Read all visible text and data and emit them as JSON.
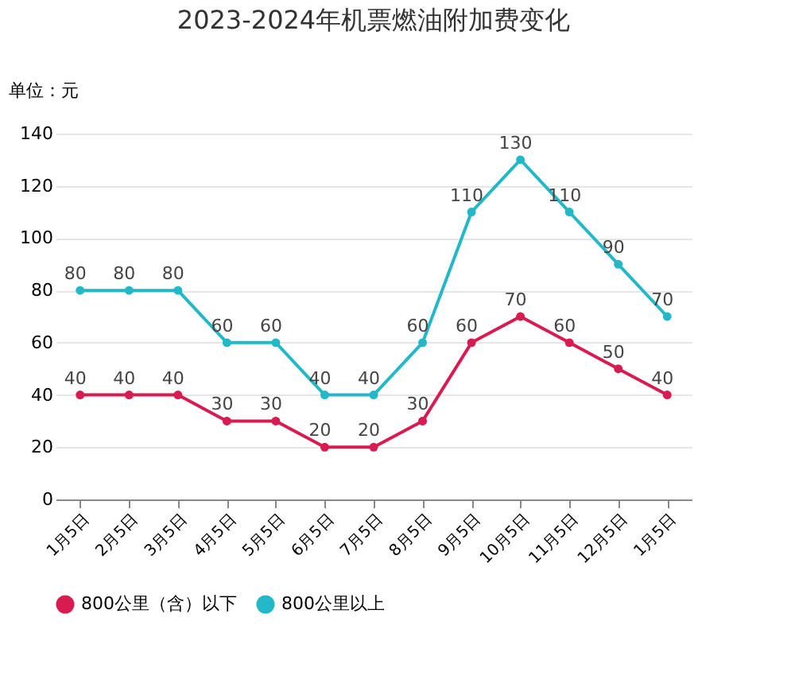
{
  "chart_data": {
    "type": "line",
    "title": "2023-2024年机票燃油附加费变化",
    "ylabel": "单位：元",
    "categories": [
      "1月5日",
      "2月5日",
      "3月5日",
      "4月5日",
      "5月5日",
      "6月5日",
      "7月5日",
      "8月5日",
      "9月5日",
      "10月5日",
      "11月5日",
      "12月5日",
      "1月5日"
    ],
    "series": [
      {
        "name": "800公里（含）以下",
        "color": "#d81b50",
        "values": [
          40,
          40,
          40,
          30,
          30,
          20,
          20,
          30,
          60,
          70,
          60,
          50,
          40
        ]
      },
      {
        "name": "800公里以上",
        "color": "#22b8c8",
        "values": [
          80,
          80,
          80,
          60,
          60,
          40,
          40,
          60,
          110,
          130,
          110,
          90,
          70
        ]
      }
    ],
    "ylim": [
      0,
      140
    ],
    "yticks": [
      0,
      20,
      40,
      60,
      80,
      100,
      120,
      140
    ],
    "grid": "y",
    "legend": "bottom",
    "marker": "circle",
    "line_style": "solid",
    "data_labels": true
  }
}
